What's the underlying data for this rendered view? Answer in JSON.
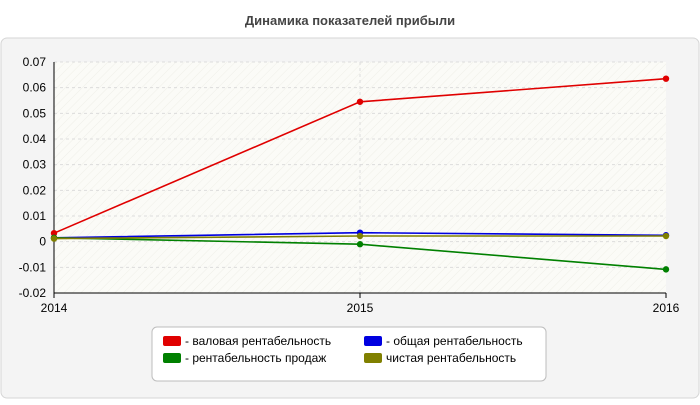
{
  "chart_data": {
    "type": "line",
    "title": "Динамика показателей прибыли",
    "x": [
      "2014",
      "2015",
      "2016"
    ],
    "ylim": [
      -0.02,
      0.07
    ],
    "yticks": [
      "0.07",
      "0.06",
      "0.05",
      "0.04",
      "0.03",
      "0.02",
      "0.01",
      "0",
      "-0.01",
      "-0.02"
    ],
    "grid": true,
    "legend_position": "bottom",
    "series": [
      {
        "name": "- валовая рентабельность",
        "color": "#e00000",
        "values": [
          0.0033,
          0.0545,
          0.0635
        ]
      },
      {
        "name": "- общая рентабельность",
        "color": "#0000e0",
        "values": [
          0.0015,
          0.0035,
          0.0025
        ]
      },
      {
        "name": "- рентабельность продаж",
        "color": "#008000",
        "values": [
          0.0015,
          -0.001,
          -0.0108
        ]
      },
      {
        "name": "чистая рентабельность",
        "color": "#808000",
        "values": [
          0.0012,
          0.0022,
          0.0022
        ]
      }
    ]
  }
}
